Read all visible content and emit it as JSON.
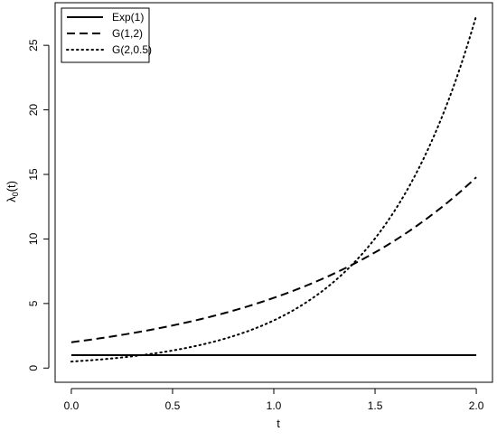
{
  "chart_data": {
    "type": "line",
    "title": "",
    "xlabel": "t",
    "ylabel_main": "λ",
    "ylabel_sub": "0",
    "ylabel_rest": "(t)",
    "xlim": [
      -0.08,
      2.08
    ],
    "ylim": [
      -1.1,
      28.3
    ],
    "x_ticks": [
      0.0,
      0.5,
      1.0,
      1.5,
      2.0
    ],
    "x_tick_labels": [
      "0.0",
      "0.5",
      "1.0",
      "1.5",
      "2.0"
    ],
    "y_ticks": [
      0,
      5,
      10,
      15,
      20,
      25
    ],
    "y_tick_labels": [
      "0",
      "5",
      "10",
      "15",
      "20",
      "25"
    ],
    "grid": false,
    "legend_position": "top-left",
    "series": [
      {
        "name": "Exp(1)",
        "style": "solid",
        "color": "#000000",
        "x": [
          0.0,
          0.25,
          0.5,
          0.75,
          1.0,
          1.25,
          1.5,
          1.75,
          2.0
        ],
        "y": [
          1.0,
          1.0,
          1.0,
          1.0,
          1.0,
          1.0,
          1.0,
          1.0,
          1.0
        ]
      },
      {
        "name": "G(1,2)",
        "style": "dashed",
        "color": "#000000",
        "x": [
          0.0,
          0.25,
          0.5,
          0.75,
          1.0,
          1.25,
          1.5,
          1.75,
          2.0
        ],
        "y": [
          2.0,
          2.57,
          3.3,
          4.23,
          5.44,
          6.98,
          8.96,
          11.51,
          14.78
        ]
      },
      {
        "name": "G(2,0.5)",
        "style": "dotted",
        "color": "#000000",
        "x": [
          0.0,
          0.25,
          0.5,
          0.75,
          1.0,
          1.25,
          1.5,
          1.75,
          2.0
        ],
        "y": [
          0.5,
          0.82,
          1.36,
          2.24,
          3.69,
          6.09,
          10.04,
          16.56,
          27.3
        ]
      }
    ]
  }
}
